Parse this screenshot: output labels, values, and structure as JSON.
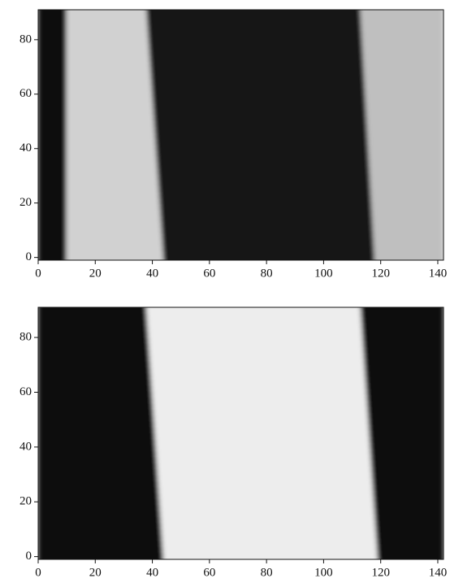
{
  "chart_data": [
    {
      "type": "heatmap",
      "colormap": "gray",
      "xlim": [
        0,
        142
      ],
      "ylim": [
        -1,
        91
      ],
      "xticks": [
        0,
        20,
        40,
        60,
        80,
        100,
        120,
        140
      ],
      "yticks": [
        0,
        20,
        40,
        60,
        80
      ],
      "regions": [
        {
          "x_bottom": [
            0,
            10
          ],
          "x_top": [
            0,
            10
          ],
          "level": 0.04
        },
        {
          "x_bottom": [
            10,
            44
          ],
          "x_top": [
            10,
            38
          ],
          "level": 0.82
        },
        {
          "x_bottom": [
            44,
            118
          ],
          "x_top": [
            38,
            113
          ],
          "level": 0.07
        },
        {
          "x_bottom": [
            118,
            142
          ],
          "x_top": [
            113,
            142
          ],
          "level": 0.75
        }
      ]
    },
    {
      "type": "heatmap",
      "colormap": "gray",
      "xlim": [
        0,
        142
      ],
      "ylim": [
        -1,
        91
      ],
      "xticks": [
        0,
        20,
        40,
        60,
        80,
        100,
        120,
        140
      ],
      "yticks": [
        0,
        20,
        40,
        60,
        80
      ],
      "regions": [
        {
          "x_bottom": [
            0,
            44
          ],
          "x_top": [
            0,
            38
          ],
          "level": 0.03
        },
        {
          "x_bottom": [
            44,
            119
          ],
          "x_top": [
            38,
            113
          ],
          "level": 0.93
        },
        {
          "x_bottom": [
            119,
            142
          ],
          "x_top": [
            113,
            142
          ],
          "level": 0.03
        }
      ]
    }
  ]
}
